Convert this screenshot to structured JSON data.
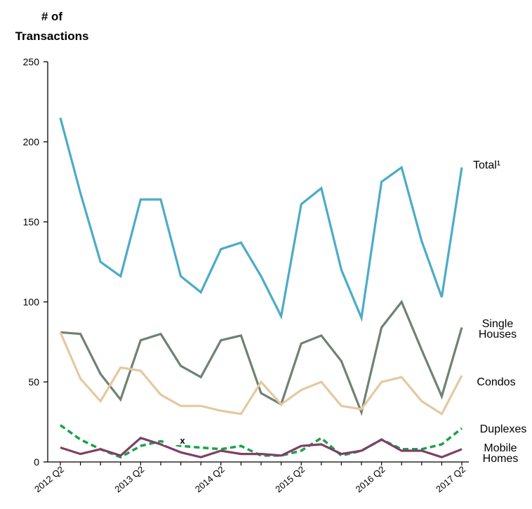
{
  "chart_data": {
    "type": "line",
    "ylabel": "# of Transactions",
    "ylim": [
      0,
      250
    ],
    "yticks": [
      0,
      50,
      100,
      150,
      200,
      250
    ],
    "x_tick_labels": [
      "2012 Q2",
      "2013 Q2",
      "2014 Q2",
      "2015 Q2",
      "2016 Q2",
      "2017 Q2"
    ],
    "categories": [
      "2012 Q2",
      "2012 Q3",
      "2012 Q4",
      "2013 Q1",
      "2013 Q2",
      "2013 Q3",
      "2013 Q4",
      "2014 Q1",
      "2014 Q2",
      "2014 Q3",
      "2014 Q4",
      "2015 Q1",
      "2015 Q2",
      "2015 Q3",
      "2015 Q4",
      "2016 Q1",
      "2016 Q2",
      "2016 Q3",
      "2016 Q4",
      "2017 Q1",
      "2017 Q2"
    ],
    "series": [
      {
        "name": "Total",
        "label": "Total¹",
        "color": "#4bacc6",
        "dashed": false,
        "values": [
          215,
          168,
          125,
          116,
          164,
          164,
          116,
          106,
          133,
          137,
          116,
          91,
          161,
          171,
          120,
          90,
          175,
          184,
          138,
          103,
          184
        ]
      },
      {
        "name": "Single Houses",
        "label_lines": [
          "Single",
          "Houses"
        ],
        "color": "#6f8274",
        "dashed": false,
        "values": [
          81,
          80,
          55,
          39,
          76,
          80,
          60,
          53,
          76,
          79,
          43,
          36,
          74,
          79,
          63,
          31,
          84,
          100,
          70,
          41,
          84
        ]
      },
      {
        "name": "Condos",
        "label": "Condos",
        "color": "#e4c9a0",
        "dashed": false,
        "values": [
          81,
          52,
          38,
          59,
          57,
          42,
          35,
          35,
          32,
          30,
          50,
          36,
          45,
          50,
          35,
          33,
          50,
          53,
          38,
          30,
          54
        ]
      },
      {
        "name": "Duplexes",
        "label": "Duplexes",
        "color": "#19a347",
        "dashed": true,
        "values": [
          23,
          14,
          8,
          3,
          10,
          13,
          10,
          9,
          8,
          10,
          4,
          4,
          7,
          15,
          4,
          7,
          14,
          8,
          8,
          11,
          21
        ]
      },
      {
        "name": "Mobile Homes",
        "label_lines": [
          "Mobile",
          "Homes"
        ],
        "color": "#7e3f68",
        "dashed": false,
        "values": [
          9,
          5,
          8,
          4,
          15,
          11,
          6,
          3,
          7,
          5,
          5,
          4,
          10,
          11,
          5,
          7,
          14,
          7,
          7,
          3,
          8
        ]
      }
    ],
    "annotations": [
      "x"
    ],
    "grid": false,
    "legend": "inline labels at line ends"
  }
}
